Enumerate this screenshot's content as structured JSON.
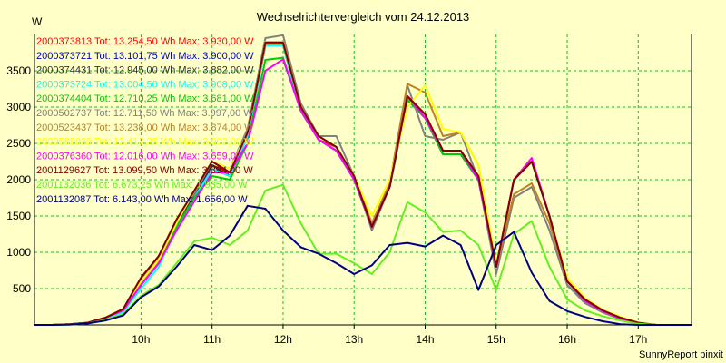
{
  "chart_data": {
    "type": "line",
    "title": "Wechselrichtervergleich vom 24.12.2013",
    "ylabel": "W",
    "xlabel": "",
    "ylim": [
      0,
      4000
    ],
    "y_ticks": [
      500,
      1000,
      1500,
      2000,
      2500,
      3000,
      3500
    ],
    "x_ticks": [
      "10h",
      "11h",
      "12h",
      "13h",
      "14h",
      "15h",
      "16h",
      "17h"
    ],
    "x_tick_hours": [
      10,
      11,
      12,
      13,
      14,
      15,
      16,
      17
    ],
    "xlim_hours": [
      8.5,
      17.75
    ],
    "grid": true,
    "legend_position": "top-left inside plot",
    "footer": "SunnyReport pinxit",
    "x": [
      8.5,
      8.75,
      9.0,
      9.25,
      9.5,
      9.75,
      10.0,
      10.25,
      10.5,
      10.75,
      11.0,
      11.25,
      11.5,
      11.75,
      12.0,
      12.25,
      12.5,
      12.75,
      13.0,
      13.25,
      13.5,
      13.75,
      14.0,
      14.25,
      14.5,
      14.75,
      15.0,
      15.25,
      15.5,
      15.75,
      16.0,
      16.25,
      16.5,
      16.75,
      17.0,
      17.25,
      17.5,
      17.75
    ],
    "series": [
      {
        "legend": "2000373813 Tot: 13.254,50 Wh Max: 3.930,00 W",
        "color": "#FF0000",
        "values": [
          0,
          0,
          10,
          30,
          100,
          220,
          600,
          900,
          1400,
          1800,
          2200,
          2100,
          2600,
          3880,
          3880,
          2950,
          2550,
          2450,
          2050,
          1350,
          1900,
          3150,
          2900,
          2400,
          2400,
          2050,
          800,
          2000,
          2250,
          1500,
          600,
          350,
          200,
          100,
          30,
          0,
          0,
          0
        ]
      },
      {
        "legend": "2000373721 Tot: 13.101,75 Wh Max: 3.900,00 W",
        "color": "#0000C0",
        "values": [
          0,
          0,
          10,
          30,
          100,
          200,
          550,
          850,
          1350,
          1800,
          2150,
          2050,
          2600,
          3850,
          3850,
          2950,
          2550,
          2400,
          2050,
          1350,
          1900,
          3100,
          2850,
          2350,
          2350,
          2000,
          800,
          2000,
          2250,
          1500,
          600,
          330,
          190,
          90,
          25,
          0,
          0,
          0
        ]
      },
      {
        "legend": "2000374431 Tot: 12.945,00 Wh Max: 3.882,00 W",
        "color": "#303030",
        "values": [
          0,
          0,
          10,
          30,
          100,
          200,
          600,
          900,
          1400,
          1800,
          2200,
          2050,
          2600,
          3850,
          3860,
          2950,
          2550,
          2400,
          2050,
          1330,
          1900,
          3100,
          2850,
          2350,
          2350,
          2000,
          800,
          2000,
          2250,
          1500,
          600,
          330,
          190,
          90,
          25,
          0,
          0,
          0
        ]
      },
      {
        "legend": "2000373724 Tot: 13.004,50 Wh Max: 3.908,00 W",
        "color": "#00FFFF",
        "values": [
          0,
          0,
          5,
          20,
          80,
          180,
          500,
          800,
          1350,
          1750,
          2150,
          2050,
          2600,
          3850,
          3850,
          2950,
          2550,
          2400,
          2050,
          1330,
          1900,
          3100,
          2850,
          2350,
          2350,
          2000,
          800,
          2000,
          2250,
          1500,
          600,
          330,
          190,
          90,
          25,
          0,
          0,
          0
        ]
      },
      {
        "legend": "2000374404 Tot: 12.710,25 Wh Max: 3.681,00 W",
        "color": "#00CC00",
        "values": [
          0,
          0,
          10,
          30,
          100,
          200,
          550,
          850,
          1350,
          1750,
          2050,
          2000,
          2500,
          3650,
          3680,
          2950,
          2550,
          2400,
          2000,
          1330,
          1900,
          3100,
          2850,
          2350,
          2350,
          2000,
          800,
          2000,
          2250,
          1500,
          600,
          330,
          190,
          90,
          25,
          0,
          0,
          0
        ]
      },
      {
        "legend": "2000502737 Tot: 12.711,50 Wh Max: 3.997,00 W",
        "color": "#808080",
        "values": [
          0,
          0,
          10,
          30,
          100,
          200,
          600,
          950,
          1450,
          1800,
          2250,
          2150,
          2700,
          3950,
          3990,
          3050,
          2600,
          2600,
          2050,
          1300,
          1900,
          3300,
          2600,
          2550,
          2650,
          2000,
          700,
          1750,
          1900,
          1300,
          550,
          300,
          170,
          80,
          20,
          0,
          0,
          0
        ]
      },
      {
        "legend": "2000523437 Tot: 13.238,00 Wh Max: 3.874,00 W",
        "color": "#C08020",
        "values": [
          0,
          0,
          10,
          30,
          100,
          220,
          650,
          950,
          1450,
          1850,
          2250,
          2100,
          2650,
          3870,
          3870,
          3000,
          2600,
          2450,
          2050,
          1400,
          1950,
          3320,
          3200,
          2600,
          2650,
          2200,
          800,
          1800,
          1950,
          1400,
          600,
          350,
          200,
          100,
          30,
          0,
          0,
          0
        ]
      },
      {
        "legend": "2000589030 Tot: 13.413,25 Wh Max: 3.902,00 W",
        "color": "#FFFF00",
        "values": [
          0,
          0,
          10,
          30,
          100,
          220,
          600,
          900,
          1400,
          1850,
          2250,
          2150,
          2650,
          3900,
          3900,
          3000,
          2600,
          2450,
          2050,
          1500,
          2000,
          3000,
          3300,
          2700,
          2650,
          2200,
          850,
          2000,
          2300,
          1500,
          650,
          370,
          210,
          110,
          30,
          0,
          0,
          0
        ]
      },
      {
        "legend": "2000376360 Tot: 12.016,00 Wh Max: 3.659,00 W",
        "color": "#FF00FF",
        "values": [
          0,
          0,
          10,
          30,
          100,
          200,
          550,
          850,
          1300,
          1700,
          2100,
          2100,
          2500,
          3500,
          3659,
          2950,
          2550,
          2400,
          2000,
          1350,
          1900,
          3150,
          2850,
          2400,
          2400,
          2000,
          800,
          2000,
          2300,
          1500,
          600,
          330,
          190,
          90,
          25,
          0,
          0,
          0
        ]
      },
      {
        "legend": "2001129627 Tot: 13.099,50 Wh Max: 3.894,00 W",
        "color": "#800000",
        "values": [
          0,
          0,
          10,
          30,
          100,
          220,
          650,
          950,
          1450,
          1850,
          2250,
          2100,
          2650,
          3890,
          3890,
          3000,
          2600,
          2450,
          2050,
          1350,
          1900,
          3150,
          2900,
          2400,
          2400,
          2050,
          800,
          2000,
          2250,
          1500,
          600,
          350,
          200,
          100,
          30,
          0,
          0,
          0
        ]
      },
      {
        "legend": "2001132036 Tot: 6.673,25 Wh Max: 1.935,00 W",
        "color": "#66EE22",
        "values": [
          0,
          0,
          5,
          20,
          70,
          150,
          400,
          550,
          850,
          1150,
          1200,
          1100,
          1300,
          1850,
          1930,
          1400,
          980,
          980,
          850,
          700,
          1000,
          1690,
          1550,
          1280,
          1300,
          1100,
          480,
          1250,
          1430,
          800,
          350,
          200,
          120,
          60,
          15,
          0,
          0,
          0
        ]
      },
      {
        "legend": "2001132087 Tot: 6.143,00 Wh Max: 1.656,00 W",
        "color": "#000080",
        "values": [
          0,
          0,
          5,
          20,
          60,
          130,
          380,
          530,
          800,
          1100,
          1030,
          1230,
          1640,
          1600,
          1300,
          1070,
          980,
          850,
          700,
          820,
          1100,
          1130,
          1080,
          1230,
          1100,
          480,
          1100,
          1280,
          720,
          330,
          190,
          110,
          50,
          10,
          0,
          0,
          0,
          0
        ]
      }
    ]
  }
}
